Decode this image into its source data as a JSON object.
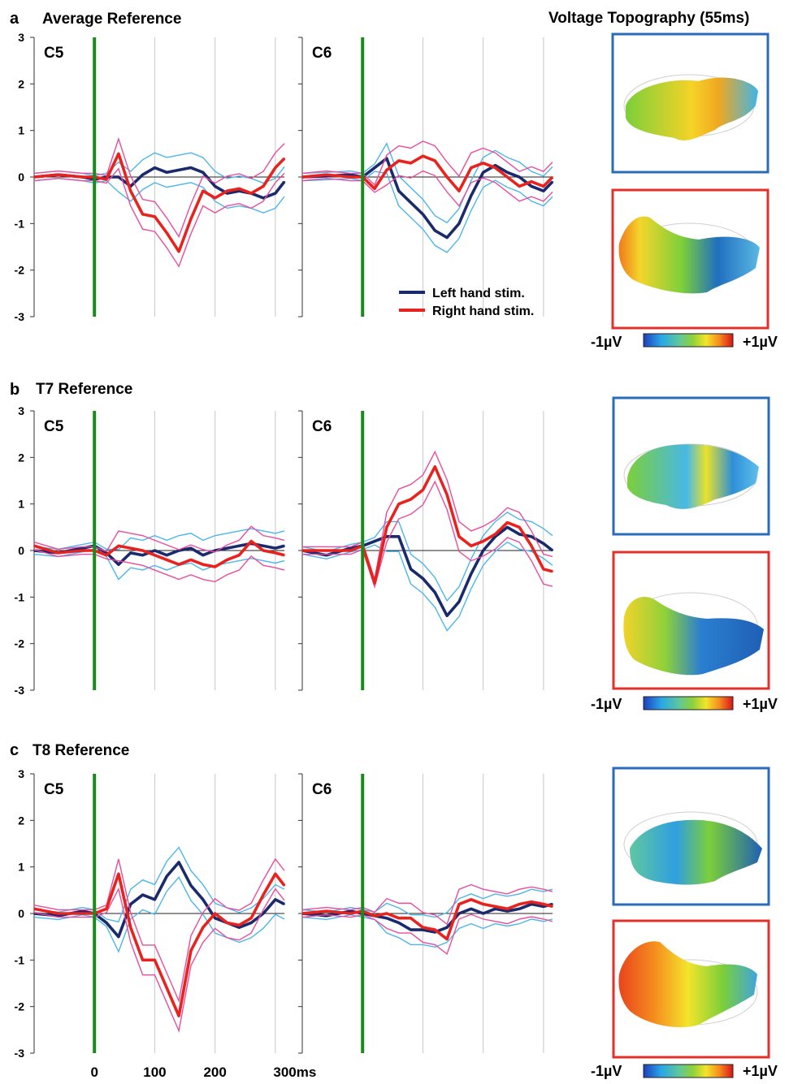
{
  "figure": {
    "topography_title": "Voltage Topography (55ms)",
    "legend": [
      {
        "label": "Left hand stim.",
        "color": "#1a2a6c"
      },
      {
        "label": "Right hand stim.",
        "color": "#e8231f"
      }
    ],
    "colorbar": {
      "min_label": "-1µV",
      "max_label": "+1µV"
    },
    "x_tick_labels": [
      "0",
      "100",
      "200",
      "300ms"
    ],
    "colors": {
      "left": "#1a2a6c",
      "left_ci": "#4cb6ec",
      "right": "#e8231f",
      "right_ci": "#e84d9c",
      "stim_line": "#1a8a1a",
      "grid": "#c8c8c8",
      "box_left": "#2b6cb8",
      "box_right": "#e3302b"
    }
  },
  "chart_data": [
    {
      "type": "line",
      "panel_letter": "a",
      "panel_title": "Average Reference",
      "channel": "C5",
      "xlim": [
        -100,
        315
      ],
      "ylim": [
        -3,
        3
      ],
      "y_ticks": [
        3,
        2,
        1,
        0,
        -1,
        -2,
        -3
      ],
      "x_grid": [
        100,
        200,
        300
      ],
      "series": [
        {
          "name": "Left hand stim.",
          "x": [
            -100,
            -60,
            -20,
            0,
            20,
            40,
            60,
            80,
            100,
            120,
            140,
            160,
            180,
            200,
            220,
            240,
            260,
            280,
            300,
            315
          ],
          "y": [
            0,
            0.05,
            0,
            -0.05,
            0,
            0,
            -0.2,
            0.05,
            0.2,
            0.1,
            0.15,
            0.2,
            0.1,
            -0.2,
            -0.35,
            -0.3,
            -0.35,
            -0.45,
            -0.35,
            -0.1
          ]
        },
        {
          "name": "Right hand stim.",
          "x": [
            -100,
            -60,
            -20,
            0,
            20,
            40,
            60,
            80,
            100,
            120,
            140,
            160,
            180,
            200,
            220,
            240,
            260,
            280,
            300,
            315
          ],
          "y": [
            0,
            0.05,
            0,
            0,
            -0.05,
            0.5,
            -0.3,
            -0.8,
            -0.85,
            -1.2,
            -1.6,
            -0.9,
            -0.3,
            -0.45,
            -0.3,
            -0.25,
            -0.35,
            -0.2,
            0.2,
            0.4
          ]
        }
      ]
    },
    {
      "type": "line",
      "channel": "C6",
      "xlim": [
        -100,
        315
      ],
      "ylim": [
        -3,
        3
      ],
      "x_grid": [
        100,
        200,
        300
      ],
      "series": [
        {
          "name": "Left hand stim.",
          "x": [
            -100,
            -60,
            -20,
            0,
            20,
            40,
            60,
            80,
            100,
            120,
            140,
            160,
            180,
            200,
            220,
            240,
            260,
            280,
            300,
            315
          ],
          "y": [
            0,
            0.02,
            0.05,
            0,
            0.2,
            0.4,
            -0.3,
            -0.55,
            -0.8,
            -1.15,
            -1.3,
            -1.0,
            -0.4,
            0.1,
            0.25,
            0.1,
            0.0,
            -0.2,
            -0.3,
            -0.1
          ]
        },
        {
          "name": "Right hand stim.",
          "x": [
            -100,
            -60,
            -20,
            0,
            20,
            40,
            60,
            80,
            100,
            120,
            140,
            160,
            180,
            200,
            220,
            240,
            260,
            280,
            300,
            315
          ],
          "y": [
            0,
            0.05,
            0,
            0,
            -0.25,
            0.15,
            0.35,
            0.3,
            0.45,
            0.35,
            0.0,
            -0.3,
            0.2,
            0.3,
            0.2,
            0.0,
            -0.2,
            -0.1,
            -0.2,
            0.0
          ]
        }
      ]
    },
    {
      "type": "line",
      "panel_letter": "b",
      "panel_title": "T7 Reference",
      "channel": "C5",
      "xlim": [
        -100,
        315
      ],
      "ylim": [
        -3,
        3
      ],
      "y_ticks": [
        3,
        2,
        1,
        0,
        -1,
        -2,
        -3
      ],
      "x_grid": [
        100,
        200,
        300
      ],
      "series": [
        {
          "name": "Left hand stim.",
          "x": [
            -100,
            -60,
            -20,
            0,
            20,
            40,
            60,
            80,
            100,
            120,
            140,
            160,
            180,
            200,
            220,
            240,
            260,
            280,
            300,
            315
          ],
          "y": [
            0,
            -0.05,
            0.05,
            0.1,
            -0.05,
            -0.3,
            -0.05,
            -0.1,
            0,
            -0.1,
            0,
            0.05,
            -0.1,
            0,
            0.05,
            0.1,
            0.15,
            0.1,
            0.05,
            0.1
          ]
        },
        {
          "name": "Right hand stim.",
          "x": [
            -100,
            -60,
            -20,
            0,
            20,
            40,
            60,
            80,
            100,
            120,
            140,
            160,
            180,
            200,
            220,
            240,
            260,
            280,
            300,
            315
          ],
          "y": [
            0.1,
            -0.05,
            0,
            0,
            -0.1,
            0.1,
            0.05,
            0,
            -0.1,
            -0.2,
            -0.3,
            -0.2,
            -0.3,
            -0.35,
            -0.2,
            -0.1,
            0.2,
            0.0,
            -0.05,
            -0.1
          ]
        }
      ]
    },
    {
      "type": "line",
      "channel": "C6",
      "xlim": [
        -100,
        315
      ],
      "ylim": [
        -3,
        3
      ],
      "x_grid": [
        100,
        200,
        300
      ],
      "series": [
        {
          "name": "Left hand stim.",
          "x": [
            -100,
            -60,
            -20,
            0,
            20,
            40,
            60,
            80,
            100,
            120,
            140,
            160,
            180,
            200,
            220,
            240,
            260,
            280,
            300,
            315
          ],
          "y": [
            0,
            -0.1,
            0.05,
            0.1,
            0.2,
            0.3,
            0.3,
            -0.4,
            -0.6,
            -0.9,
            -1.4,
            -1.1,
            -0.5,
            0.0,
            0.3,
            0.5,
            0.35,
            0.3,
            0.15,
            0.0
          ]
        },
        {
          "name": "Right hand stim.",
          "x": [
            -100,
            -60,
            -20,
            0,
            20,
            40,
            60,
            80,
            100,
            120,
            140,
            160,
            180,
            200,
            220,
            240,
            260,
            280,
            300,
            315
          ],
          "y": [
            0,
            0,
            0,
            0.1,
            -0.7,
            0.5,
            1.0,
            1.1,
            1.3,
            1.8,
            1.2,
            0.3,
            0.1,
            0.2,
            0.35,
            0.6,
            0.5,
            0.1,
            -0.4,
            -0.45
          ]
        }
      ]
    },
    {
      "type": "line",
      "panel_letter": "c",
      "panel_title": "T8 Reference",
      "channel": "C5",
      "xlim": [
        -100,
        315
      ],
      "ylim": [
        -3,
        3
      ],
      "y_ticks": [
        3,
        2,
        1,
        0,
        -1,
        -2,
        -3
      ],
      "x_grid": [
        100,
        200,
        300
      ],
      "series": [
        {
          "name": "Left hand stim.",
          "x": [
            -100,
            -60,
            -20,
            0,
            20,
            40,
            60,
            80,
            100,
            120,
            140,
            160,
            180,
            200,
            220,
            240,
            260,
            280,
            300,
            315
          ],
          "y": [
            0,
            -0.05,
            0.05,
            0,
            -0.2,
            -0.5,
            0.2,
            0.4,
            0.3,
            0.8,
            1.1,
            0.6,
            0.3,
            -0.1,
            -0.2,
            -0.3,
            -0.2,
            0.0,
            0.3,
            0.2
          ]
        },
        {
          "name": "Right hand stim.",
          "x": [
            -100,
            -60,
            -20,
            0,
            20,
            40,
            60,
            80,
            100,
            120,
            140,
            160,
            180,
            200,
            220,
            240,
            260,
            280,
            300,
            315
          ],
          "y": [
            0.1,
            0,
            0,
            0,
            0.1,
            0.85,
            -0.3,
            -1.0,
            -1.0,
            -1.6,
            -2.2,
            -0.8,
            -0.3,
            0.0,
            -0.2,
            -0.25,
            -0.1,
            0.4,
            0.85,
            0.6
          ]
        }
      ]
    },
    {
      "type": "line",
      "channel": "C6",
      "xlim": [
        -100,
        315
      ],
      "ylim": [
        -3,
        3
      ],
      "x_grid": [
        100,
        200,
        300
      ],
      "series": [
        {
          "name": "Left hand stim.",
          "x": [
            -100,
            -60,
            -20,
            0,
            20,
            40,
            60,
            80,
            100,
            120,
            140,
            160,
            180,
            200,
            220,
            240,
            260,
            280,
            300,
            315
          ],
          "y": [
            0,
            -0.05,
            0.05,
            0,
            -0.05,
            -0.1,
            -0.2,
            -0.35,
            -0.35,
            -0.4,
            -0.3,
            0,
            0.1,
            0,
            0.1,
            0.05,
            0.1,
            0.2,
            0.15,
            0.2
          ]
        },
        {
          "name": "Right hand stim.",
          "x": [
            -100,
            -60,
            -20,
            0,
            20,
            40,
            60,
            80,
            100,
            120,
            140,
            160,
            180,
            200,
            220,
            240,
            260,
            280,
            300,
            315
          ],
          "y": [
            0,
            0.05,
            0,
            0.05,
            -0.05,
            0,
            -0.1,
            -0.1,
            -0.3,
            -0.35,
            -0.55,
            0.2,
            0.3,
            0.2,
            0.15,
            0.1,
            0.2,
            0.25,
            0.2,
            0.15
          ]
        }
      ]
    }
  ]
}
